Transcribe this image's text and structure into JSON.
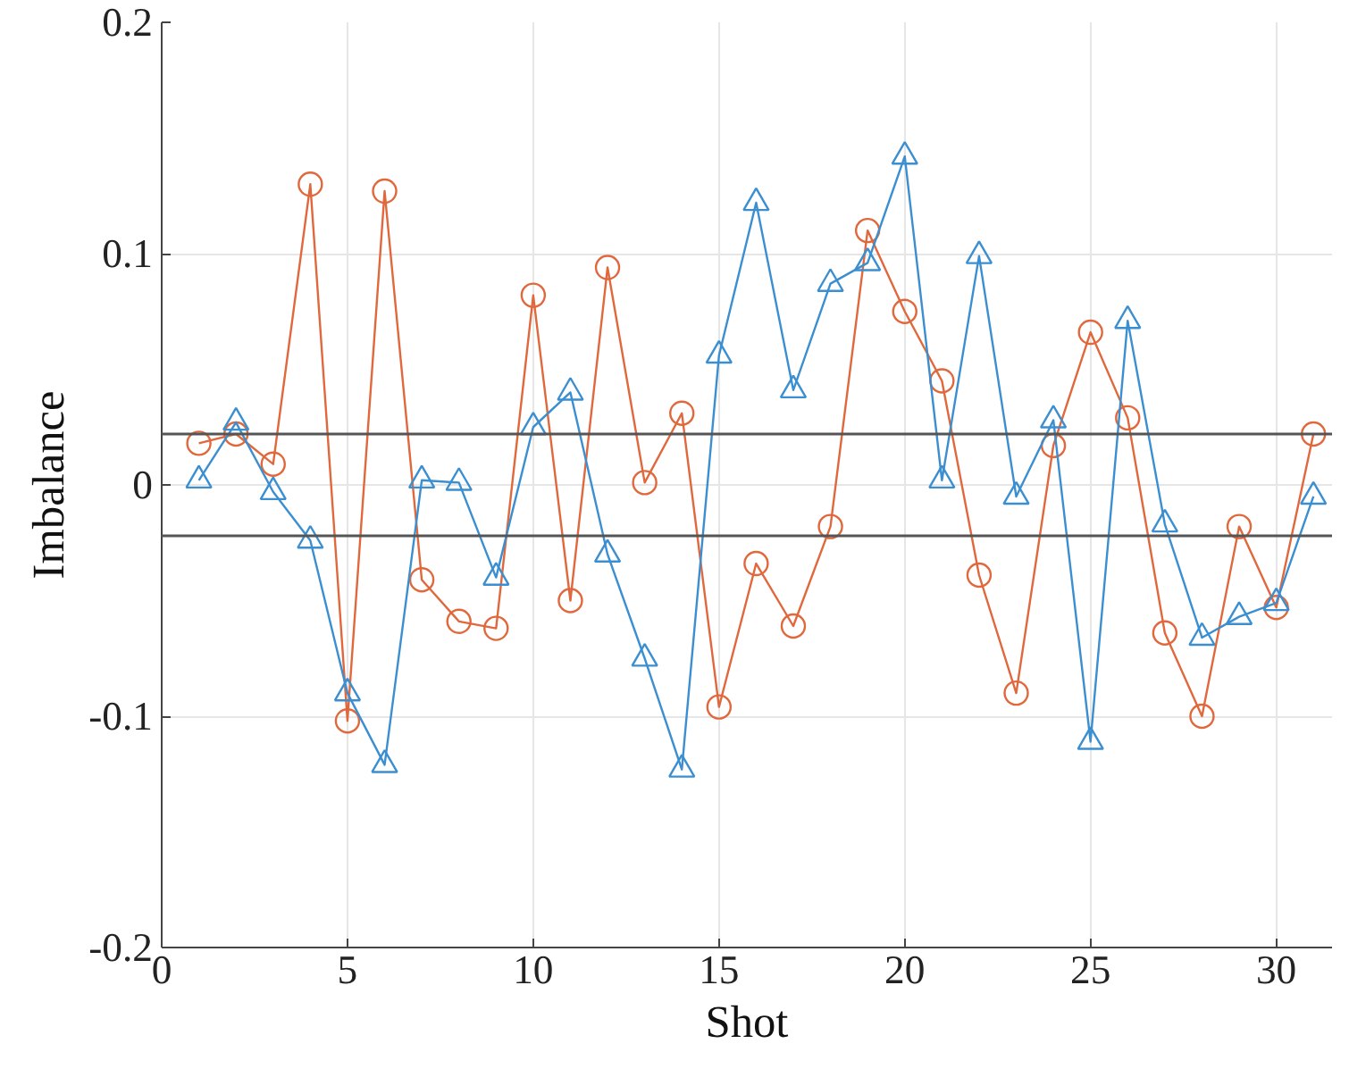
{
  "chart_data": {
    "type": "line",
    "xlabel": "Shot",
    "ylabel": "Imbalance",
    "x": [
      1,
      2,
      3,
      4,
      5,
      6,
      7,
      8,
      9,
      10,
      11,
      12,
      13,
      14,
      15,
      16,
      17,
      18,
      19,
      20,
      21,
      22,
      23,
      24,
      25,
      26,
      27,
      28,
      29,
      30,
      31
    ],
    "series": [
      {
        "color": "#e0683c",
        "marker": "circle",
        "values": [
          0.018,
          0.022,
          0.009,
          0.13,
          -0.102,
          0.127,
          -0.041,
          -0.059,
          -0.062,
          0.082,
          -0.05,
          0.094,
          0.001,
          0.031,
          -0.096,
          -0.034,
          -0.061,
          -0.018,
          0.11,
          0.075,
          0.045,
          -0.039,
          -0.09,
          0.017,
          0.066,
          0.029,
          -0.064,
          -0.1,
          -0.018,
          -0.053,
          0.022
        ]
      },
      {
        "color": "#3b8fd1",
        "marker": "triangle",
        "values": [
          0.002,
          0.027,
          -0.003,
          -0.024,
          -0.09,
          -0.121,
          0.002,
          0.001,
          -0.04,
          0.025,
          0.04,
          -0.03,
          -0.075,
          -0.123,
          0.056,
          0.122,
          0.041,
          0.087,
          0.096,
          0.142,
          0.002,
          0.099,
          -0.005,
          0.028,
          -0.111,
          0.071,
          -0.017,
          -0.066,
          -0.057,
          -0.051,
          -0.005
        ]
      }
    ],
    "ref_lines": [
      {
        "axis": "y",
        "value": 0.022,
        "color": "#555555"
      },
      {
        "axis": "y",
        "value": -0.022,
        "color": "#555555"
      }
    ],
    "xlim": [
      0,
      31.5
    ],
    "ylim": [
      -0.2,
      0.2
    ],
    "xticks": [
      0,
      5,
      10,
      15,
      20,
      25,
      30
    ],
    "yticks": [
      {
        "value": -0.2,
        "label": "-0.2"
      },
      {
        "value": -0.1,
        "label": "-0.1"
      },
      0,
      0.1,
      0.2
    ],
    "grid": true
  }
}
